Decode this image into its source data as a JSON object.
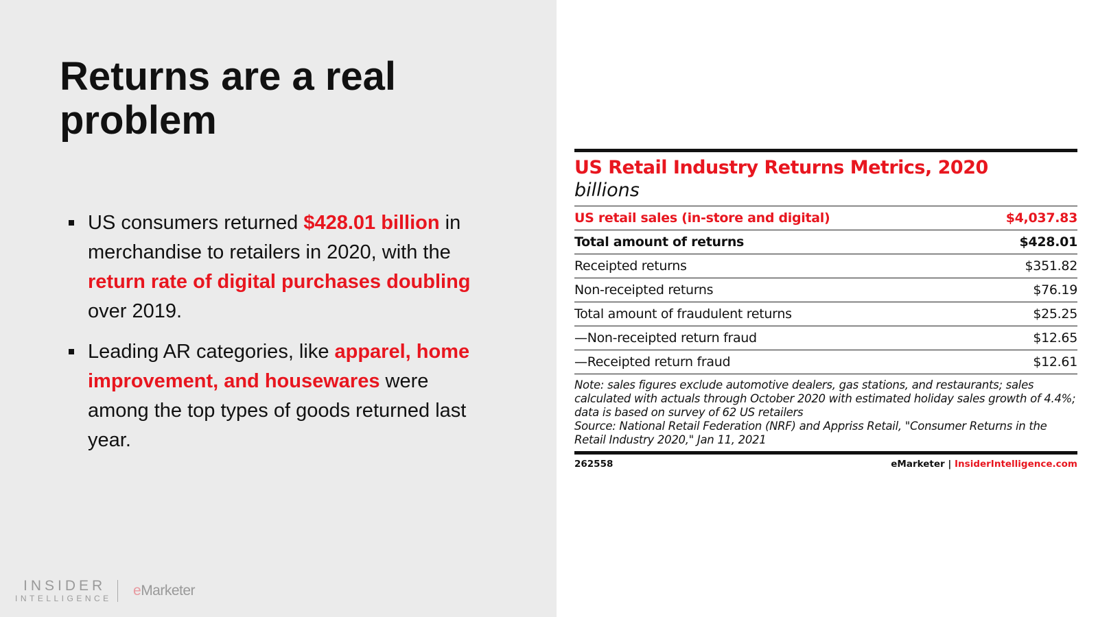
{
  "slide": {
    "title": "Returns are a real problem",
    "bullets": [
      {
        "parts": [
          {
            "t": "US consumers returned ",
            "h": false
          },
          {
            "t": "$428.01 billion",
            "h": true
          },
          {
            "t": " in merchandise to retailers in 2020, with the ",
            "h": false
          },
          {
            "t": "return rate of digital purchases doubling",
            "h": true
          },
          {
            "t": " over 2019.",
            "h": false
          }
        ]
      },
      {
        "parts": [
          {
            "t": "Leading AR categories, like ",
            "h": false
          },
          {
            "t": "apparel, home improvement, and housewares",
            "h": true
          },
          {
            "t": " were among the top types of goods returned last year.",
            "h": false
          }
        ]
      }
    ],
    "logo": {
      "line1": "INSIDER",
      "line2": "INTELLIGENCE",
      "brand_e": "e",
      "brand_rest": "Marketer"
    }
  },
  "table": {
    "title": "US Retail Industry Returns Metrics, 2020",
    "subtitle": "billions",
    "rows": [
      {
        "label": "US retail sales (in-store and digital)",
        "value": "$4,037.83",
        "style": "red"
      },
      {
        "label": "Total amount of returns",
        "value": "$428.01",
        "style": "bold"
      },
      {
        "label": "Receipted returns",
        "value": "$351.82",
        "style": ""
      },
      {
        "label": "Non-receipted returns",
        "value": "$76.19",
        "style": ""
      },
      {
        "label": "Total amount of fraudulent returns",
        "value": "$25.25",
        "style": ""
      },
      {
        "label": "—Non-receipted return fraud",
        "value": "$12.65",
        "style": ""
      },
      {
        "label": "—Receipted return fraud",
        "value": "$12.61",
        "style": ""
      }
    ],
    "note": "Note: sales figures exclude automotive dealers, gas stations, and restaurants; sales calculated with actuals through October 2020 with estimated holiday sales growth of 4.4%; data is based on survey of 62 US retailers",
    "source": "Source: National Retail Federation (NRF) and Appriss Retail, \"Consumer Returns in the Retail Industry 2020,\" Jan 11, 2021",
    "id": "262558",
    "footer_brand": "eMarketer",
    "footer_sep": "|",
    "footer_site": "InsiderIntelligence.com"
  },
  "colors": {
    "accent": "#e8161f",
    "panel": "#ebebeb"
  }
}
